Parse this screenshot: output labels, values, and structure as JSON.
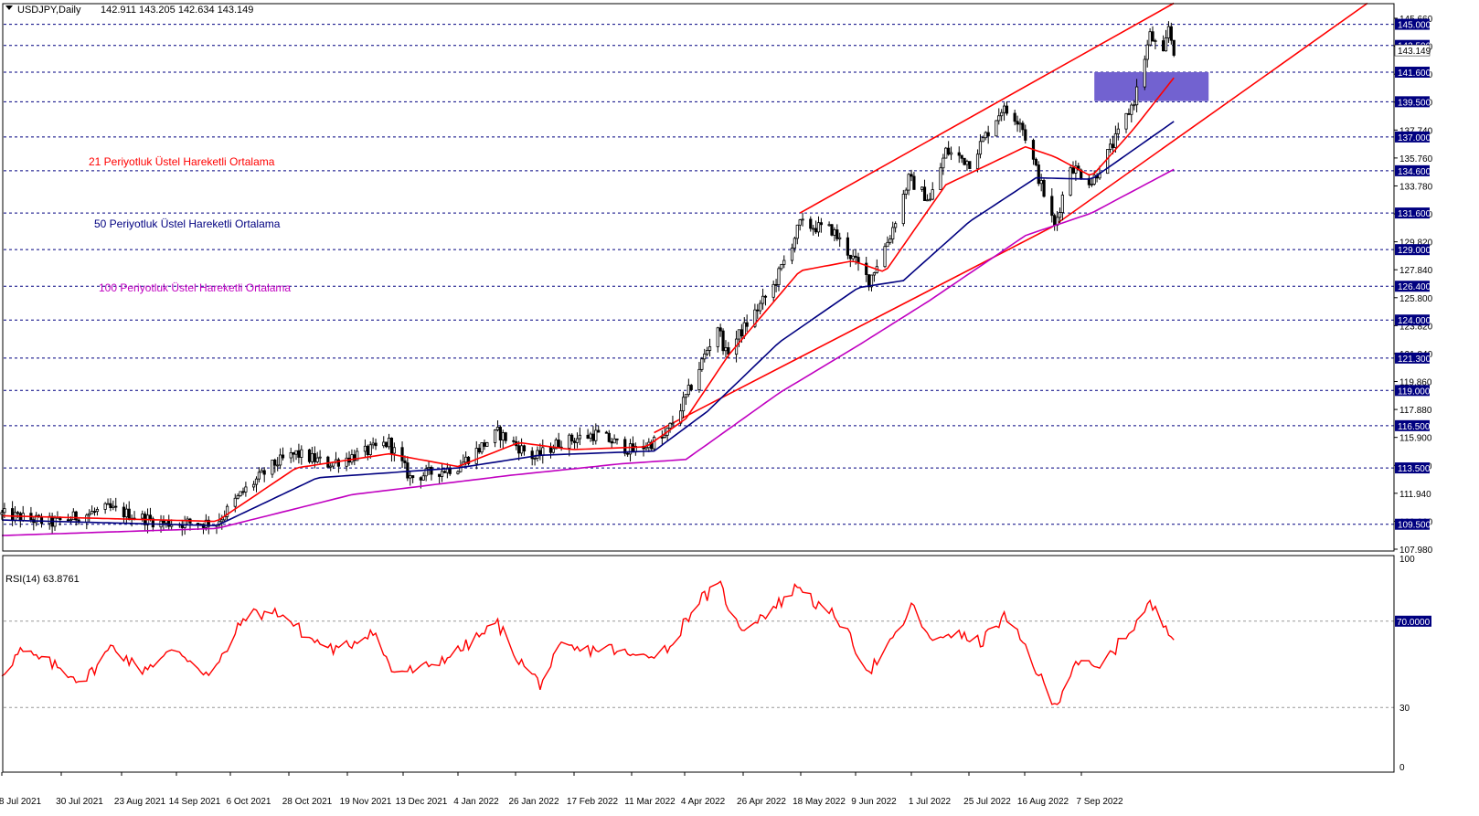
{
  "header": {
    "symbol": "USDJPY,Daily",
    "ohlc": "142.911 143.205 142.634 143.149"
  },
  "indicator_panel": {
    "label": "RSI(14) 63.8761"
  },
  "colors": {
    "background": "#ffffff",
    "candle": "#000000",
    "ema21": "#ff0000",
    "ema50": "#000080",
    "ema100": "#c000c0",
    "channel": "#ff0000",
    "levels": "#000080",
    "zone": "#6a5acd",
    "rsi": "#ff0000",
    "level_label_bg": "#000080"
  },
  "legend": [
    {
      "name": "21 Periyotluk Üstel Hareketli Ortalama",
      "color": "#ff0000"
    },
    {
      "name": "50 Periyotluk Üstel Hareketli Ortalama",
      "color": "#000080"
    },
    {
      "name": "100 Periyotluk Üstel Hareketli Ortalama",
      "color": "#c000c0"
    }
  ],
  "chart_data": [
    {
      "type": "candlestick",
      "title": "USDJPY,Daily",
      "x_ticks": [
        "8 Jul 2021",
        "30 Jul 2021",
        "23 Aug 2021",
        "14 Sep 2021",
        "6 Oct 2021",
        "28 Oct 2021",
        "19 Nov 2021",
        "13 Dec 2021",
        "4 Jan 2022",
        "26 Jan 2022",
        "17 Feb 2022",
        "11 Mar 2022",
        "4 Apr 2022",
        "26 Apr 2022",
        "18 May 2022",
        "9 Jun 2022",
        "1 Jul 2022",
        "25 Jul 2022",
        "16 Aug 2022",
        "7 Sep 2022"
      ],
      "y_ticks": [
        "145.660",
        "143.700",
        "141.720",
        "139.740",
        "137.740",
        "135.760",
        "133.780",
        "131.800",
        "129.820",
        "127.840",
        "125.800",
        "123.820",
        "121.840",
        "119.860",
        "117.880",
        "115.900",
        "113.920",
        "111.940",
        "109.960",
        "107.980"
      ],
      "ylim": [
        107.6,
        146.4
      ],
      "horizontal_levels": [
        "145.000",
        "143.500",
        "141.600",
        "139.500",
        "137.000",
        "134.600",
        "131.600",
        "129.000",
        "126.400",
        "124.000",
        "121.300",
        "119.000",
        "116.500",
        "113.500",
        "109.500"
      ],
      "current_price": "143.149",
      "resistance_zone": {
        "from_date": "2022-08-17",
        "to_date": "2022-09-16",
        "low": 139.55,
        "high": 141.6
      },
      "channel_upper": [
        {
          "date": "2022-04-28",
          "value": 131.6
        },
        {
          "date": "2022-09-16",
          "value": 146.5
        }
      ],
      "channel_lower": [
        {
          "date": "2022-03-04",
          "value": 116.0
        },
        {
          "date": "2022-08-01",
          "value": 130.6
        },
        {
          "date": "2022-11-28",
          "value": 146.5
        }
      ],
      "series_anchors": [
        {
          "date": "2021-07-01",
          "value": 110.2
        },
        {
          "date": "2021-07-20",
          "value": 109.6
        },
        {
          "date": "2021-08-10",
          "value": 110.6
        },
        {
          "date": "2021-08-30",
          "value": 109.6
        },
        {
          "date": "2021-09-20",
          "value": 109.6
        },
        {
          "date": "2021-09-30",
          "value": 111.8
        },
        {
          "date": "2021-10-12",
          "value": 113.8
        },
        {
          "date": "2021-10-20",
          "value": 114.5
        },
        {
          "date": "2021-11-01",
          "value": 113.8
        },
        {
          "date": "2021-11-15",
          "value": 114.6
        },
        {
          "date": "2021-11-24",
          "value": 115.3
        },
        {
          "date": "2021-12-02",
          "value": 112.8
        },
        {
          "date": "2021-12-20",
          "value": 113.6
        },
        {
          "date": "2022-01-04",
          "value": 116.0
        },
        {
          "date": "2022-01-18",
          "value": 114.2
        },
        {
          "date": "2022-01-27",
          "value": 115.3
        },
        {
          "date": "2022-02-10",
          "value": 115.9
        },
        {
          "date": "2022-02-24",
          "value": 114.7
        },
        {
          "date": "2022-03-08",
          "value": 115.7
        },
        {
          "date": "2022-03-16",
          "value": 118.5
        },
        {
          "date": "2022-03-28",
          "value": 123.6
        },
        {
          "date": "2022-03-31",
          "value": 121.6
        },
        {
          "date": "2022-04-18",
          "value": 126.4
        },
        {
          "date": "2022-04-28",
          "value": 130.8
        },
        {
          "date": "2022-05-10",
          "value": 130.4
        },
        {
          "date": "2022-05-24",
          "value": 126.8
        },
        {
          "date": "2022-06-01",
          "value": 130.0
        },
        {
          "date": "2022-06-08",
          "value": 134.0
        },
        {
          "date": "2022-06-16",
          "value": 132.5
        },
        {
          "date": "2022-06-22",
          "value": 136.0
        },
        {
          "date": "2022-07-01",
          "value": 135.2
        },
        {
          "date": "2022-07-13",
          "value": 139.0
        },
        {
          "date": "2022-07-20",
          "value": 138.2
        },
        {
          "date": "2022-08-02",
          "value": 130.6
        },
        {
          "date": "2022-08-08",
          "value": 135.0
        },
        {
          "date": "2022-08-16",
          "value": 133.8
        },
        {
          "date": "2022-08-25",
          "value": 136.8
        },
        {
          "date": "2022-09-01",
          "value": 139.6
        },
        {
          "date": "2022-09-07",
          "value": 144.2
        },
        {
          "date": "2022-09-12",
          "value": 142.7
        },
        {
          "date": "2022-09-14",
          "value": 144.8
        },
        {
          "date": "2022-09-16",
          "value": 143.15
        }
      ],
      "ema21_anchors": [
        {
          "date": "2021-07-01",
          "value": 110.1
        },
        {
          "date": "2021-09-20",
          "value": 109.7
        },
        {
          "date": "2021-10-20",
          "value": 113.5
        },
        {
          "date": "2021-11-24",
          "value": 114.5
        },
        {
          "date": "2021-12-20",
          "value": 113.6
        },
        {
          "date": "2022-01-12",
          "value": 115.3
        },
        {
          "date": "2022-02-01",
          "value": 114.8
        },
        {
          "date": "2022-03-01",
          "value": 115.0
        },
        {
          "date": "2022-03-16",
          "value": 117.0
        },
        {
          "date": "2022-04-01",
          "value": 121.5
        },
        {
          "date": "2022-04-28",
          "value": 127.5
        },
        {
          "date": "2022-05-18",
          "value": 128.2
        },
        {
          "date": "2022-05-30",
          "value": 127.4
        },
        {
          "date": "2022-06-22",
          "value": 133.6
        },
        {
          "date": "2022-07-22",
          "value": 136.3
        },
        {
          "date": "2022-08-02",
          "value": 135.6
        },
        {
          "date": "2022-08-16",
          "value": 134.2
        },
        {
          "date": "2022-09-01",
          "value": 137.6
        },
        {
          "date": "2022-09-16",
          "value": 141.2
        }
      ],
      "ema50_anchors": [
        {
          "date": "2021-07-01",
          "value": 109.8
        },
        {
          "date": "2021-09-20",
          "value": 109.4
        },
        {
          "date": "2021-10-28",
          "value": 112.8
        },
        {
          "date": "2021-12-20",
          "value": 113.5
        },
        {
          "date": "2022-01-20",
          "value": 114.4
        },
        {
          "date": "2022-03-04",
          "value": 114.7
        },
        {
          "date": "2022-03-24",
          "value": 117.5
        },
        {
          "date": "2022-04-20",
          "value": 122.4
        },
        {
          "date": "2022-05-20",
          "value": 126.3
        },
        {
          "date": "2022-06-06",
          "value": 126.8
        },
        {
          "date": "2022-07-01",
          "value": 131.0
        },
        {
          "date": "2022-07-26",
          "value": 134.1
        },
        {
          "date": "2022-08-16",
          "value": 134.0
        },
        {
          "date": "2022-09-16",
          "value": 138.1
        }
      ],
      "ema100_anchors": [
        {
          "date": "2021-07-01",
          "value": 108.7
        },
        {
          "date": "2021-09-20",
          "value": 109.2
        },
        {
          "date": "2021-11-10",
          "value": 111.6
        },
        {
          "date": "2022-01-10",
          "value": 113.0
        },
        {
          "date": "2022-02-20",
          "value": 113.8
        },
        {
          "date": "2022-03-16",
          "value": 114.1
        },
        {
          "date": "2022-04-20",
          "value": 118.8
        },
        {
          "date": "2022-05-20",
          "value": 122.2
        },
        {
          "date": "2022-06-16",
          "value": 125.4
        },
        {
          "date": "2022-07-22",
          "value": 130.0
        },
        {
          "date": "2022-08-16",
          "value": 131.6
        },
        {
          "date": "2022-09-16",
          "value": 134.7
        }
      ]
    },
    {
      "type": "line",
      "title": "RSI(14) 63.8761",
      "y_ticks": [
        "100",
        "70.0000",
        "30",
        "0"
      ],
      "ylim": [
        0,
        100
      ],
      "levels": [
        70,
        30
      ],
      "rsi_anchors": [
        {
          "date": "2021-07-01",
          "value": 46
        },
        {
          "date": "2021-07-08",
          "value": 56
        },
        {
          "date": "2021-07-20",
          "value": 50
        },
        {
          "date": "2021-08-01",
          "value": 42
        },
        {
          "date": "2021-08-12",
          "value": 59
        },
        {
          "date": "2021-08-22",
          "value": 47
        },
        {
          "date": "2021-09-05",
          "value": 57
        },
        {
          "date": "2021-09-18",
          "value": 44
        },
        {
          "date": "2021-10-01",
          "value": 73
        },
        {
          "date": "2021-10-14",
          "value": 74
        },
        {
          "date": "2021-10-25",
          "value": 62
        },
        {
          "date": "2021-11-05",
          "value": 56
        },
        {
          "date": "2021-11-18",
          "value": 66
        },
        {
          "date": "2021-11-25",
          "value": 47
        },
        {
          "date": "2021-12-05",
          "value": 47
        },
        {
          "date": "2021-12-20",
          "value": 56
        },
        {
          "date": "2022-01-04",
          "value": 69
        },
        {
          "date": "2022-01-12",
          "value": 52
        },
        {
          "date": "2022-01-20",
          "value": 41
        },
        {
          "date": "2022-01-28",
          "value": 58
        },
        {
          "date": "2022-02-05",
          "value": 56
        },
        {
          "date": "2022-02-14",
          "value": 58
        },
        {
          "date": "2022-02-25",
          "value": 53
        },
        {
          "date": "2022-03-10",
          "value": 58
        },
        {
          "date": "2022-03-20",
          "value": 79
        },
        {
          "date": "2022-03-29",
          "value": 86
        },
        {
          "date": "2022-04-05",
          "value": 66
        },
        {
          "date": "2022-04-18",
          "value": 76
        },
        {
          "date": "2022-04-28",
          "value": 87
        },
        {
          "date": "2022-05-06",
          "value": 75
        },
        {
          "date": "2022-05-12",
          "value": 72
        },
        {
          "date": "2022-05-24",
          "value": 47
        },
        {
          "date": "2022-06-01",
          "value": 59
        },
        {
          "date": "2022-06-10",
          "value": 78
        },
        {
          "date": "2022-06-16",
          "value": 60
        },
        {
          "date": "2022-06-23",
          "value": 65
        },
        {
          "date": "2022-07-05",
          "value": 60
        },
        {
          "date": "2022-07-14",
          "value": 72
        },
        {
          "date": "2022-07-22",
          "value": 58
        },
        {
          "date": "2022-08-02",
          "value": 30
        },
        {
          "date": "2022-08-10",
          "value": 52
        },
        {
          "date": "2022-08-18",
          "value": 47
        },
        {
          "date": "2022-09-01",
          "value": 68
        },
        {
          "date": "2022-09-07",
          "value": 78
        },
        {
          "date": "2022-09-12",
          "value": 69
        },
        {
          "date": "2022-09-16",
          "value": 64
        }
      ]
    }
  ]
}
